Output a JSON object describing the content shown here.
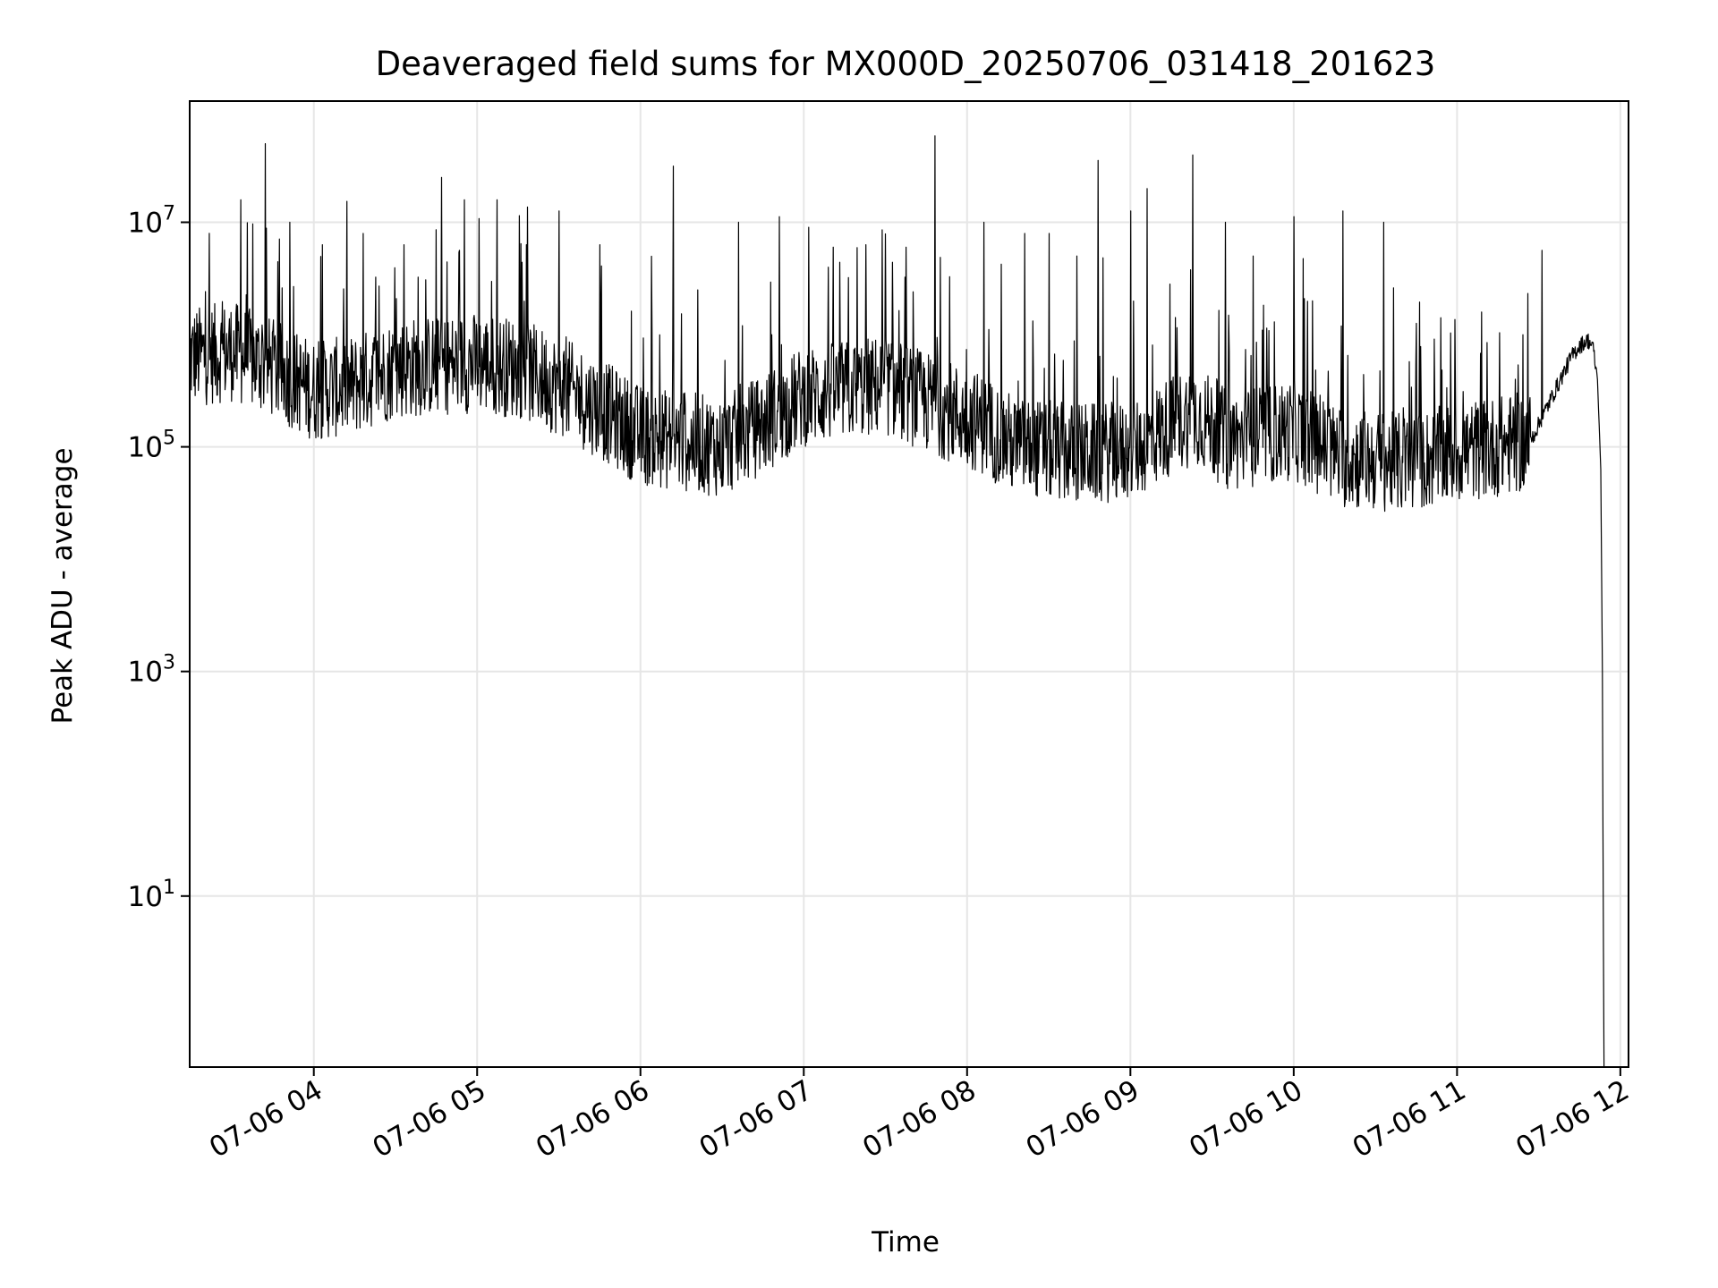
{
  "chart_data": {
    "type": "line",
    "title": "Deaveraged field sums for MX000D_20250706_031418_201623",
    "xlabel": "Time",
    "ylabel": "Peak ADU - average",
    "x_tick_labels": [
      "07-06 04",
      "07-06 05",
      "07-06 06",
      "07-06 07",
      "07-06 08",
      "07-06 09",
      "07-06 10",
      "07-06 11",
      "07-06 12"
    ],
    "x_tick_hours": [
      4,
      5,
      6,
      7,
      8,
      9,
      10,
      11,
      12
    ],
    "xlim_hours": [
      3.24,
      12.05
    ],
    "y_scale": "log",
    "y_tick_labels": [
      {
        "base": "10",
        "exp": "1"
      },
      {
        "base": "10",
        "exp": "3"
      },
      {
        "base": "10",
        "exp": "5"
      },
      {
        "base": "10",
        "exp": "7"
      }
    ],
    "y_tick_values": [
      10,
      1000,
      100000,
      10000000
    ],
    "ylim": [
      0.3,
      120000000
    ],
    "grid": true,
    "line_color": "#000000",
    "series": [
      {
        "baseline_log10": [
          [
            3.24,
            5.8
          ],
          [
            3.5,
            5.85
          ],
          [
            3.75,
            5.7
          ],
          [
            4.0,
            5.5
          ],
          [
            4.25,
            5.55
          ],
          [
            4.5,
            5.7
          ],
          [
            5.0,
            5.75
          ],
          [
            5.25,
            5.7
          ],
          [
            5.5,
            5.55
          ],
          [
            5.8,
            5.3
          ],
          [
            6.0,
            5.1
          ],
          [
            6.5,
            5.0
          ],
          [
            6.75,
            5.2
          ],
          [
            7.0,
            5.45
          ],
          [
            7.5,
            5.55
          ],
          [
            7.75,
            5.4
          ],
          [
            8.1,
            5.2
          ],
          [
            8.3,
            5.0
          ],
          [
            8.6,
            4.95
          ],
          [
            9.0,
            4.95
          ],
          [
            9.2,
            5.15
          ],
          [
            9.4,
            5.3
          ],
          [
            9.6,
            5.05
          ],
          [
            10.0,
            5.15
          ],
          [
            10.3,
            4.9
          ],
          [
            10.7,
            4.85
          ],
          [
            11.0,
            4.95
          ],
          [
            11.45,
            5.05
          ],
          [
            11.7,
            5.8
          ],
          [
            11.75,
            5.9
          ],
          [
            11.8,
            5.95
          ],
          [
            11.83,
            5.9
          ],
          [
            11.86,
            5.6
          ],
          [
            11.88,
            4.8
          ],
          [
            11.89,
            3.0
          ],
          [
            11.895,
            1.0
          ],
          [
            11.9,
            -0.5
          ]
        ],
        "spikes": [
          [
            3.7,
            7.7
          ],
          [
            3.55,
            7.2
          ],
          [
            3.85,
            7.0
          ],
          [
            4.05,
            6.8
          ],
          [
            4.3,
            6.9
          ],
          [
            4.55,
            6.8
          ],
          [
            4.78,
            7.4
          ],
          [
            4.92,
            7.2
          ],
          [
            5.12,
            7.2
          ],
          [
            5.3,
            6.8
          ],
          [
            5.5,
            7.1
          ],
          [
            5.75,
            6.8
          ],
          [
            6.2,
            7.5
          ],
          [
            6.6,
            7.0
          ],
          [
            6.85,
            7.05
          ],
          [
            7.15,
            6.6
          ],
          [
            7.38,
            6.8
          ],
          [
            7.8,
            7.77
          ],
          [
            8.1,
            7.0
          ],
          [
            8.35,
            6.9
          ],
          [
            8.5,
            6.9
          ],
          [
            8.67,
            6.7
          ],
          [
            8.8,
            7.55
          ],
          [
            9.0,
            7.1
          ],
          [
            9.1,
            7.3
          ],
          [
            9.38,
            7.6
          ],
          [
            9.58,
            7.0
          ],
          [
            9.75,
            6.7
          ],
          [
            10.0,
            7.05
          ],
          [
            10.3,
            7.1
          ],
          [
            10.55,
            7.0
          ],
          [
            10.75,
            6.1
          ],
          [
            10.9,
            6.15
          ],
          [
            11.15,
            6.2
          ],
          [
            11.52,
            6.75
          ]
        ]
      }
    ]
  }
}
